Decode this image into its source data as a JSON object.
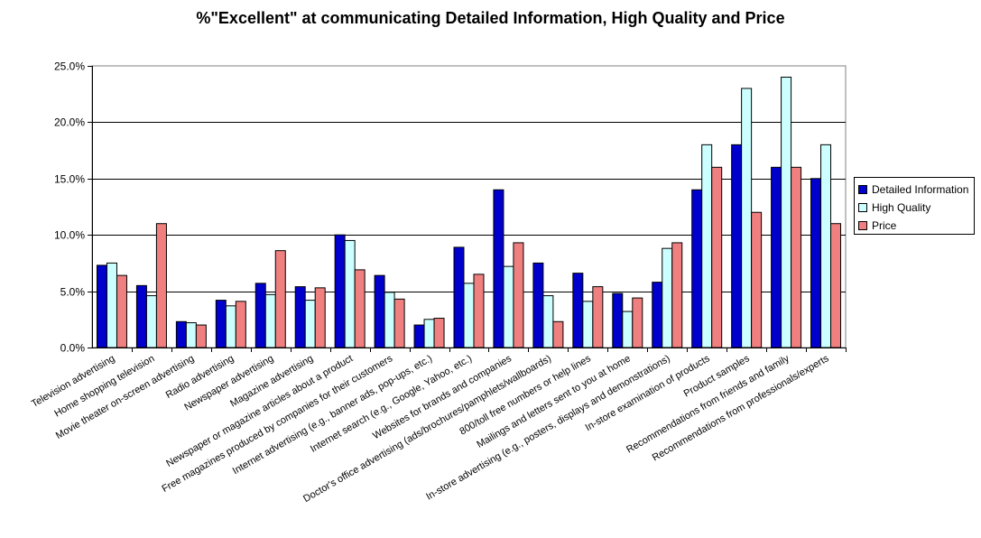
{
  "chart_data": {
    "type": "bar",
    "title": "%\"Excellent\" at communicating Detailed Information, High Quality and Price",
    "xlabel": "",
    "ylabel": "",
    "ylim": [
      0,
      25
    ],
    "yticks": [
      "0.0%",
      "5.0%",
      "10.0%",
      "15.0%",
      "20.0%",
      "25.0%"
    ],
    "grid": true,
    "legend_position": "right",
    "categories": [
      "Television advertising",
      "Home shopping television",
      "Movie theater on-screen advertising",
      "Radio advertising",
      "Newspaper advertising",
      "Magazine advertising",
      "Newspaper or magazine articles about a product",
      "Free magazines produced by companies for their customers",
      "Internet advertising (e.g., banner ads, pop-ups, etc.)",
      "Internet search (e.g., Google, Yahoo, etc.)",
      "Websites for brands and companies",
      "Doctor's office advertising (ads/brochures/pamphlets/wallboards)",
      "800/toll free numbers or help lines",
      "Mailings and letters sent to you at home",
      "In-store advertising (e.g., posters, displays and demonstrations)",
      "In-store examination of products",
      "Product samples",
      "Recommendations from friends and family",
      "Recommendations from professionals/experts"
    ],
    "series": [
      {
        "name": "Detailed Information",
        "color": "#0000cc",
        "values": [
          7.3,
          5.5,
          2.3,
          4.2,
          5.7,
          5.4,
          10.0,
          6.4,
          2.0,
          8.9,
          14.0,
          7.5,
          6.6,
          4.8,
          5.8,
          14.0,
          18.0,
          16.0,
          15.0
        ]
      },
      {
        "name": "High Quality",
        "color": "#ccffff",
        "values": [
          7.5,
          4.6,
          2.2,
          3.7,
          4.7,
          4.2,
          9.5,
          4.9,
          2.5,
          5.7,
          7.2,
          4.6,
          4.1,
          3.2,
          8.8,
          18.0,
          23.0,
          24.0,
          18.0
        ]
      },
      {
        "name": "Price",
        "color": "#f08080",
        "values": [
          6.4,
          11.0,
          2.0,
          4.1,
          8.6,
          5.3,
          6.9,
          4.3,
          2.6,
          6.5,
          9.3,
          2.3,
          5.4,
          4.4,
          9.3,
          16.0,
          12.0,
          16.0,
          11.0
        ]
      }
    ]
  }
}
